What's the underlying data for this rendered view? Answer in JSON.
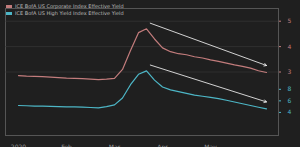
{
  "chart_data": {
    "type": "line",
    "categories": [
      "2020",
      null,
      null,
      null,
      null,
      null,
      "Feb",
      null,
      null,
      null,
      null,
      null,
      "Mar",
      null,
      null,
      null,
      null,
      null,
      "Apr",
      null,
      null,
      null,
      null,
      null,
      "May",
      null,
      null,
      null,
      null,
      null,
      null,
      null
    ],
    "series": [
      {
        "name": "ICE BofA US Corporate Index Effective Yield",
        "color": "#c27c7c",
        "values": [
          2.86,
          2.84,
          2.83,
          2.82,
          2.8,
          2.78,
          2.76,
          2.75,
          2.74,
          2.72,
          2.7,
          2.72,
          2.75,
          3.1,
          3.85,
          4.55,
          4.7,
          4.3,
          3.95,
          3.8,
          3.72,
          3.68,
          3.6,
          3.55,
          3.48,
          3.42,
          3.35,
          3.28,
          3.22,
          3.15,
          3.05,
          2.98
        ]
      },
      {
        "name": "ICE BofA US High Yield Index Effective Yield",
        "color": "#4db6c6",
        "axis": "y2",
        "values": [
          5.2,
          5.15,
          5.1,
          5.1,
          5.05,
          5.0,
          4.95,
          4.95,
          4.9,
          4.85,
          4.8,
          5.0,
          5.3,
          6.5,
          8.8,
          10.6,
          11.2,
          9.6,
          8.4,
          7.9,
          7.6,
          7.3,
          7.0,
          6.8,
          6.6,
          6.4,
          6.1,
          5.8,
          5.5,
          5.2,
          4.9,
          4.6
        ]
      }
    ],
    "ylim": [
      0.5,
      5.5
    ],
    "yticks": [
      3,
      4,
      5
    ],
    "y2lim": [
      0,
      22
    ],
    "y2ticks": [
      4,
      6,
      8
    ],
    "grid": true,
    "legend": "top-left"
  }
}
